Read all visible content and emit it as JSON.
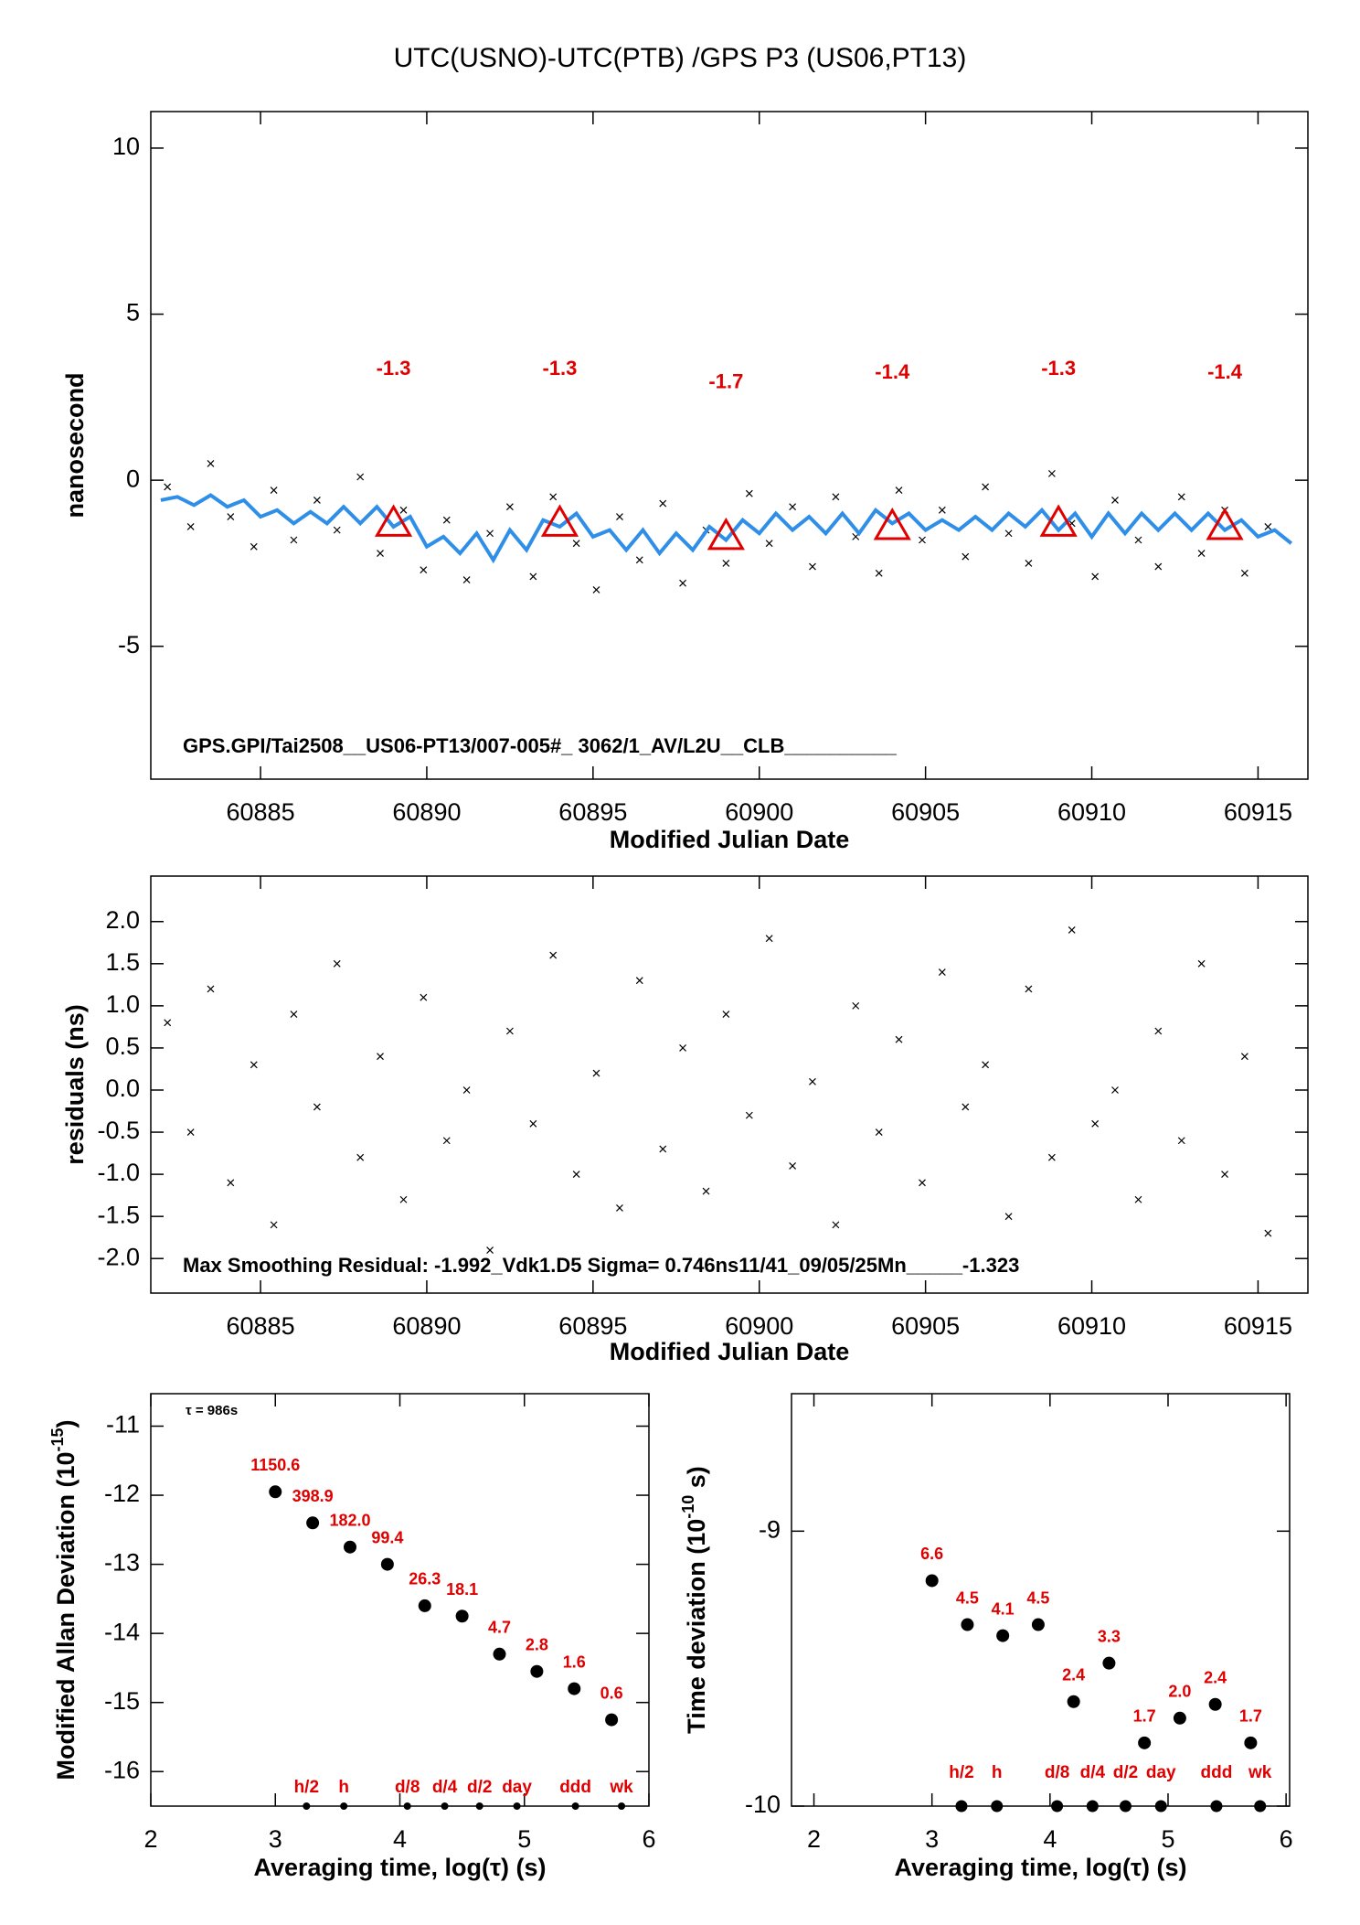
{
  "chart_data": [
    {
      "type": "timeseries",
      "title": "UTC(USNO)-UTC(PTB)  /GPS  P3  (US06,PT13)",
      "xlabel": "Modified Julian Date",
      "ylabel": "nanosecond",
      "xlim": [
        60881.7,
        60916.5
      ],
      "ylim": [
        -9.0,
        11.1
      ],
      "xticks": [
        60885,
        60890,
        60895,
        60900,
        60905,
        60910,
        60915
      ],
      "yticks": [
        10,
        5,
        0,
        -5
      ],
      "annotation": "GPS.GPI/Tai2508__US06-PT13/007-005#_  3062/1_AV/L2U__CLB__________",
      "scatter": {
        "color": "#000000",
        "x": [
          60882.2,
          60882.9,
          60883.5,
          60884.1,
          60884.8,
          60885.4,
          60886.0,
          60886.7,
          60887.3,
          60888.0,
          60888.6,
          60889.3,
          60889.9,
          60890.6,
          60891.2,
          60891.9,
          60892.5,
          60893.2,
          60893.8,
          60894.5,
          60895.1,
          60895.8,
          60896.4,
          60897.1,
          60897.7,
          60898.4,
          60899.0,
          60899.7,
          60900.3,
          60901.0,
          60901.6,
          60902.3,
          60902.9,
          60903.6,
          60904.2,
          60904.9,
          60905.5,
          60906.2,
          60906.8,
          60907.5,
          60908.1,
          60908.8,
          60909.4,
          60910.1,
          60910.7,
          60911.4,
          60912.0,
          60912.7,
          60913.3,
          60914.0,
          60914.6,
          60915.3
        ],
        "y": [
          -0.2,
          -1.4,
          0.5,
          -1.1,
          -2.0,
          -0.3,
          -1.8,
          -0.6,
          -1.5,
          0.1,
          -2.2,
          -0.9,
          -2.7,
          -1.2,
          -3.0,
          -1.6,
          -0.8,
          -2.9,
          -0.5,
          -1.9,
          -3.3,
          -1.1,
          -2.4,
          -0.7,
          -3.1,
          -1.5,
          -2.5,
          -0.4,
          -1.9,
          -0.8,
          -2.6,
          -0.5,
          -1.7,
          -2.8,
          -0.3,
          -1.8,
          -0.9,
          -2.3,
          -0.2,
          -1.6,
          -2.5,
          0.2,
          -1.3,
          -2.9,
          -0.6,
          -1.8,
          -2.6,
          -0.5,
          -2.2,
          -0.9,
          -2.8,
          -1.4
        ]
      },
      "fit": {
        "color": "#2f8fe8",
        "x": [
          60882,
          60882.5,
          60883,
          60883.5,
          60884,
          60884.5,
          60885,
          60885.5,
          60886,
          60886.5,
          60887,
          60887.5,
          60888,
          60888.5,
          60889,
          60889.5,
          60890,
          60890.5,
          60891,
          60891.5,
          60892,
          60892.5,
          60893,
          60893.5,
          60894,
          60894.5,
          60895,
          60895.5,
          60896,
          60896.5,
          60897,
          60897.5,
          60898,
          60898.5,
          60899,
          60899.5,
          60900,
          60900.5,
          60901,
          60901.5,
          60902,
          60902.5,
          60903,
          60903.5,
          60904,
          60904.5,
          60905,
          60905.5,
          60906,
          60906.5,
          60907,
          60907.5,
          60908,
          60908.5,
          60909,
          60909.5,
          60910,
          60910.5,
          60911,
          60911.5,
          60912,
          60912.5,
          60913,
          60913.5,
          60914,
          60914.5,
          60915,
          60915.5,
          60916
        ],
        "y": [
          -0.6,
          -0.5,
          -0.75,
          -0.45,
          -0.8,
          -0.6,
          -1.1,
          -0.9,
          -1.3,
          -0.95,
          -1.3,
          -0.8,
          -1.3,
          -0.8,
          -1.4,
          -1.1,
          -2.0,
          -1.7,
          -2.2,
          -1.6,
          -2.4,
          -1.5,
          -2.1,
          -1.2,
          -1.4,
          -1.0,
          -1.7,
          -1.5,
          -2.1,
          -1.5,
          -2.2,
          -1.6,
          -2.1,
          -1.4,
          -1.8,
          -1.2,
          -1.6,
          -1.0,
          -1.5,
          -1.1,
          -1.6,
          -1.0,
          -1.6,
          -0.9,
          -1.3,
          -1.0,
          -1.5,
          -1.2,
          -1.5,
          -1.1,
          -1.5,
          -1.0,
          -1.4,
          -0.9,
          -1.5,
          -1.0,
          -1.7,
          -1.0,
          -1.6,
          -1.0,
          -1.5,
          -1.0,
          -1.5,
          -1.0,
          -1.5,
          -1.2,
          -1.7,
          -1.5,
          -1.9
        ]
      },
      "triangles": {
        "color": "#e00000",
        "x": [
          60889,
          60894,
          60899,
          60904,
          60909,
          60914
        ],
        "values": [
          -1.3,
          -1.3,
          -1.7,
          -1.4,
          -1.3,
          -1.4
        ]
      }
    },
    {
      "type": "scatter",
      "xlabel": "Modified Julian Date",
      "ylabel": "residuals (ns)",
      "xlim": [
        60881.7,
        60916.5
      ],
      "ylim": [
        -2.41,
        2.54
      ],
      "xticks": [
        60885,
        60890,
        60895,
        60900,
        60905,
        60910,
        60915
      ],
      "yticks": [
        {
          "value": 2.0,
          "label": "2.0"
        },
        1.5,
        {
          "value": 1.0,
          "label": "1.0"
        },
        0.5,
        {
          "value": 0.0,
          "label": "0.0"
        },
        -0.5,
        {
          "value": -1.0,
          "label": "-1.0"
        },
        -1.5,
        {
          "value": -2.0,
          "label": "-2.0"
        }
      ],
      "annotation": "Max Smoothing Residual: -1.992_Vdk1.D5  Sigma= 0.746ns11/41_09/05/25Mn_____-1.323",
      "scatter": {
        "color": "#000000",
        "x": [
          60882.2,
          60882.9,
          60883.5,
          60884.1,
          60884.8,
          60885.4,
          60886.0,
          60886.7,
          60887.3,
          60888.0,
          60888.6,
          60889.3,
          60889.9,
          60890.6,
          60891.2,
          60891.9,
          60892.5,
          60893.2,
          60893.8,
          60894.5,
          60895.1,
          60895.8,
          60896.4,
          60897.1,
          60897.7,
          60898.4,
          60899.0,
          60899.7,
          60900.3,
          60901.0,
          60901.6,
          60902.3,
          60902.9,
          60903.6,
          60904.2,
          60904.9,
          60905.5,
          60906.2,
          60906.8,
          60907.5,
          60908.1,
          60908.8,
          60909.4,
          60910.1,
          60910.7,
          60911.4,
          60912.0,
          60912.7,
          60913.3,
          60914.0,
          60914.6,
          60915.3
        ],
        "y": [
          0.8,
          -0.5,
          1.2,
          -1.1,
          0.3,
          -1.6,
          0.9,
          -0.2,
          1.5,
          -0.8,
          0.4,
          -1.3,
          1.1,
          -0.6,
          0.0,
          -1.9,
          0.7,
          -0.4,
          1.6,
          -1.0,
          0.2,
          -1.4,
          1.3,
          -0.7,
          0.5,
          -1.2,
          0.9,
          -0.3,
          1.8,
          -0.9,
          0.1,
          -1.6,
          1.0,
          -0.5,
          0.6,
          -1.1,
          1.4,
          -0.2,
          0.3,
          -1.5,
          1.2,
          -0.8,
          1.9,
          -0.4,
          0.0,
          -1.3,
          0.7,
          -0.6,
          1.5,
          -1.0,
          0.4,
          -1.7
        ]
      }
    },
    {
      "type": "deviation",
      "xlabel": "Averaging time, log(τ) (s)",
      "ylabel": {
        "text": "Modified Allan Deviation (10",
        "sup": "-15",
        "after": ")"
      },
      "note": "τ = 986s",
      "xlim": [
        2,
        6
      ],
      "ylim": [
        -16.5,
        -10.53
      ],
      "xticks": [
        2,
        3,
        4,
        5,
        6
      ],
      "yticks": [
        -11,
        -12,
        -13,
        -14,
        -15,
        -16
      ],
      "points": {
        "x": [
          3.0,
          3.3,
          3.6,
          3.9,
          4.2,
          4.5,
          4.8,
          5.1,
          5.4,
          5.7
        ],
        "values": [
          -11.95,
          -12.4,
          -12.75,
          -13.0,
          -13.6,
          -13.75,
          -14.3,
          -14.55,
          -14.8,
          -15.25
        ],
        "labels": [
          "1150.6",
          "398.9",
          "182.0",
          "99.4",
          "26.3",
          "18.1",
          "4.7",
          "2.8",
          "1.6",
          "0.6"
        ]
      },
      "markers": {
        "x": [
          3.25,
          3.55,
          4.06,
          4.36,
          4.64,
          4.94,
          5.41,
          5.78
        ],
        "values": [
          -16.5,
          -16.5,
          -16.5,
          -16.5,
          -16.5,
          -16.5,
          -16.5,
          -16.5
        ],
        "labels": [
          "h/2",
          "h",
          "d/8",
          "d/4",
          "d/2",
          "day",
          "ddd",
          "wk"
        ]
      }
    },
    {
      "type": "deviation",
      "xlabel": "Averaging time, log(τ) (s)",
      "ylabel": {
        "text": "Time deviation (10",
        "sup": "-10",
        "after": " s)"
      },
      "xlim": [
        1.81,
        6.03
      ],
      "ylim": [
        -10,
        -8.5
      ],
      "xticks": [
        2,
        3,
        4,
        5,
        6
      ],
      "yticks": [
        -9,
        -10
      ],
      "points": {
        "x": [
          3.0,
          3.3,
          3.6,
          3.9,
          4.2,
          4.5,
          4.8,
          5.1,
          5.4,
          5.7
        ],
        "values": [
          -9.18,
          -9.34,
          -9.38,
          -9.34,
          -9.62,
          -9.48,
          -9.77,
          -9.68,
          -9.63,
          -9.77
        ],
        "labels": [
          "6.6",
          "4.5",
          "4.1",
          "4.5",
          "2.4",
          "3.3",
          "1.7",
          "2.0",
          "2.4",
          "1.7"
        ]
      },
      "markers": {
        "x": [
          3.25,
          3.55,
          4.06,
          4.36,
          4.64,
          4.94,
          5.41,
          5.78
        ],
        "values": [
          -10,
          -10,
          -10,
          -10,
          -10,
          -10,
          -10,
          -10
        ],
        "labels": [
          "h/2",
          "h",
          "d/8",
          "d/4",
          "d/2",
          "day",
          "ddd",
          "wk"
        ]
      }
    }
  ]
}
